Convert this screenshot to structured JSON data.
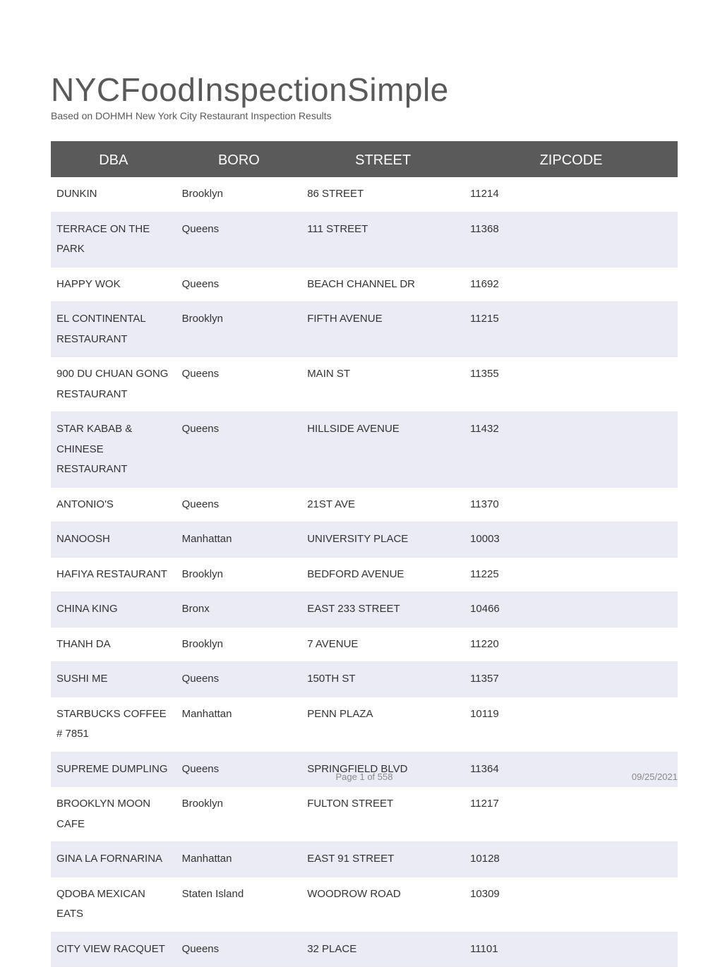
{
  "header": {
    "title": "NYCFoodInspectionSimple",
    "subtitle": "Based on DOHMH New York City Restaurant Inspection Results"
  },
  "table": {
    "columns": [
      "DBA",
      "BORO",
      "STREET",
      "ZIPCODE"
    ],
    "rows": [
      [
        "DUNKIN",
        "Brooklyn",
        "86 STREET",
        "11214"
      ],
      [
        "TERRACE ON THE PARK",
        "Queens",
        "111 STREET",
        "11368"
      ],
      [
        "HAPPY WOK",
        "Queens",
        "BEACH CHANNEL DR",
        "11692"
      ],
      [
        "EL CONTINENTAL RESTAURANT",
        "Brooklyn",
        "FIFTH AVENUE",
        "11215"
      ],
      [
        "900 DU CHUAN GONG RESTAURANT",
        "Queens",
        "MAIN ST",
        "11355"
      ],
      [
        "STAR KABAB & CHINESE RESTAURANT",
        "Queens",
        "HILLSIDE AVENUE",
        "11432"
      ],
      [
        "ANTONIO'S",
        "Queens",
        "21ST AVE",
        "11370"
      ],
      [
        "NANOOSH",
        "Manhattan",
        "UNIVERSITY PLACE",
        "10003"
      ],
      [
        "HAFIYA RESTAURANT",
        "Brooklyn",
        "BEDFORD AVENUE",
        "11225"
      ],
      [
        "CHINA KING",
        "Bronx",
        "EAST  233 STREET",
        "10466"
      ],
      [
        "THANH DA",
        "Brooklyn",
        "7 AVENUE",
        "11220"
      ],
      [
        "SUSHI ME",
        "Queens",
        "150TH ST",
        "11357"
      ],
      [
        "STARBUCKS COFFEE # 7851",
        "Manhattan",
        "PENN PLAZA",
        "10119"
      ],
      [
        "SUPREME DUMPLING",
        "Queens",
        "SPRINGFIELD BLVD",
        "11364"
      ],
      [
        "BROOKLYN MOON CAFE",
        "Brooklyn",
        "FULTON STREET",
        "11217"
      ],
      [
        "GINA LA FORNARINA",
        "Manhattan",
        "EAST   91 STREET",
        "10128"
      ],
      [
        "QDOBA MEXICAN EATS",
        "Staten Island",
        "WOODROW ROAD",
        "10309"
      ],
      [
        "CITY VIEW RACQUET",
        "Queens",
        "32 PLACE",
        "11101"
      ]
    ]
  },
  "footer": {
    "page_label": "Page 1 of 558",
    "date": "09/25/2021"
  },
  "style": {
    "header_bg": "#5a5a5a",
    "header_fg": "#ffffff",
    "row_even_bg": "#ebebf5",
    "row_odd_bg": "#ffffff",
    "title_color": "#595959",
    "text_color": "#333333"
  }
}
